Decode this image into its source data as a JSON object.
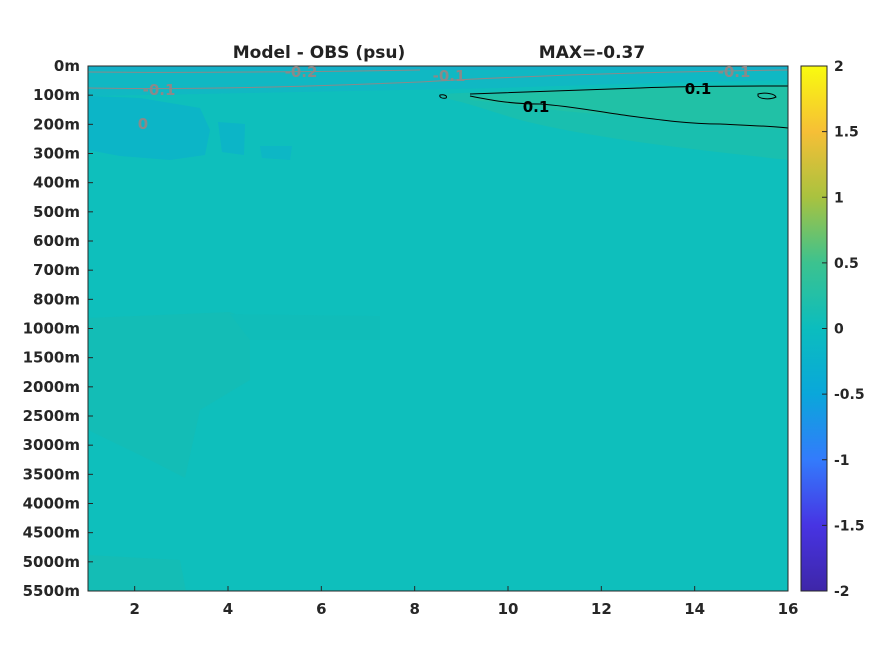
{
  "chart_data": {
    "type": "heatmap",
    "title": "Model - OBS (psu)",
    "max_label": "MAX=-0.37",
    "xlabel": "",
    "ylabel": "",
    "x_range": [
      1,
      16
    ],
    "x_ticks": [
      2,
      4,
      6,
      8,
      10,
      12,
      14,
      16
    ],
    "y_tick_labels": [
      "0m",
      "100m",
      "200m",
      "300m",
      "400m",
      "500m",
      "600m",
      "700m",
      "800m",
      "1000m",
      "1500m",
      "2000m",
      "2500m",
      "3000m",
      "3500m",
      "4000m",
      "4500m",
      "5000m",
      "5500m"
    ],
    "colorbar": {
      "range": [
        -2,
        2
      ],
      "ticks": [
        "2",
        "1.5",
        "1",
        "0.5",
        "0",
        "-0.5",
        "-1",
        "-1.5",
        "-2"
      ],
      "colormap": "parula",
      "colors": [
        "#3e26a8",
        "#4734e3",
        "#337bfc",
        "#0aa7da",
        "#1ebea2",
        "#8cc449",
        "#e5b43a",
        "#fcce2e",
        "#f9fb0e"
      ]
    },
    "contours": [
      {
        "level": "0.1",
        "color": "#000000",
        "labels": [
          {
            "text": "0.1",
            "x": 10.6,
            "depth": "100m-200m"
          },
          {
            "text": "0.1",
            "x": 14.2,
            "depth": "100m"
          }
        ]
      },
      {
        "level": "-0.1",
        "color": "#8a8a8a",
        "labels": [
          {
            "text": "-0.1",
            "x": 2.5,
            "depth": "100m"
          },
          {
            "text": "-0.1",
            "x": 8.8,
            "depth": "0m-100m"
          },
          {
            "text": "-0.1",
            "x": 15.0,
            "depth": "0m-100m"
          }
        ]
      },
      {
        "level": "-0.2",
        "color": "#8a8a8a",
        "labels": [
          {
            "text": "-0.2",
            "x": 5.6,
            "depth": "0m-100m"
          }
        ]
      },
      {
        "level": "0",
        "color": "#8a8a8a",
        "labels": [
          {
            "text": "0",
            "x": 2.2,
            "depth": "200m"
          }
        ]
      }
    ],
    "grid": false
  }
}
